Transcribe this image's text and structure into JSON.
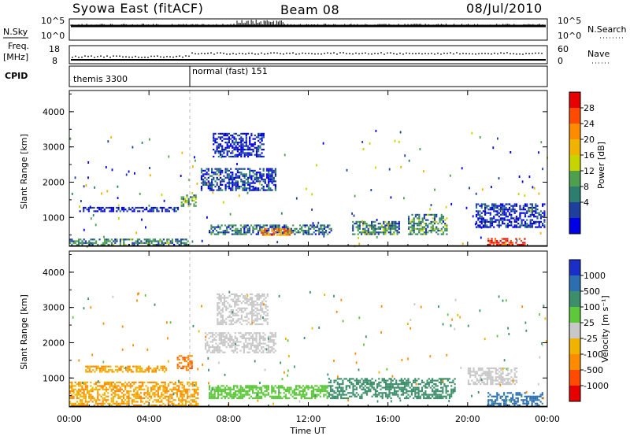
{
  "header": {
    "station": "Syowa East (fitACF)",
    "beam": "Beam 08",
    "date": "08/Jul/2010"
  },
  "noise_panel": {
    "left_label": "N.Sky",
    "right_label": "N.Search",
    "left_top": "10^5",
    "left_bottom": "10^0",
    "right_top": "10^5",
    "right_bottom": "10^0"
  },
  "freq_panel": {
    "left_label_1": "Freq.",
    "left_label_2": "[MHz]",
    "right_label": "Nave",
    "left_top": "18",
    "left_bottom": "8",
    "right_top": "60",
    "right_bottom": "0"
  },
  "cpid_panel": {
    "label": "CPID",
    "mode_1": "themis 3300",
    "mode_2": "normal (fast) 151"
  },
  "power_colorbar": {
    "label": "Power [dB]",
    "ticks": [
      "28",
      "24",
      "20",
      "16",
      "12",
      "8",
      "4"
    ],
    "colors": [
      "#e60000",
      "#ff4a00",
      "#ff8c00",
      "#f0b400",
      "#c8d400",
      "#4ea04e",
      "#2c7f6e",
      "#1e3f9e",
      "#0000e6"
    ]
  },
  "velocity_colorbar": {
    "label": "Velocity [m s⁻¹]",
    "ticks": [
      "1000",
      "500",
      "100",
      "25",
      "-25",
      "-100",
      "-500",
      "-1000"
    ],
    "colors": [
      "#1a2fc8",
      "#2c6fb0",
      "#3c8f6a",
      "#5cc83a",
      "#c8c8c8",
      "#f0b400",
      "#ff8c00",
      "#ff4a00",
      "#e60000"
    ]
  },
  "axes": {
    "ylabel": "Slant Range [km]",
    "xlabel": "Time UT",
    "yticks": [
      "4000",
      "3000",
      "2000",
      "1000"
    ],
    "xticks": [
      "00:00",
      "04:00",
      "08:00",
      "12:00",
      "16:00",
      "20:00",
      "00:00"
    ]
  },
  "chart_data": [
    {
      "type": "heatmap",
      "title": "Power [dB]",
      "x_unit": "hours UT",
      "y_unit": "km",
      "xlim": [
        0,
        24
      ],
      "ylim": [
        180,
        4600
      ],
      "blobs": [
        {
          "t0": 5.6,
          "t1": 6.4,
          "r0": 1300,
          "r1": 1650,
          "val": 12
        },
        {
          "t0": 6.6,
          "t1": 10.4,
          "r0": 1750,
          "r1": 2400,
          "val": 6
        },
        {
          "t0": 7.2,
          "t1": 9.8,
          "r0": 2700,
          "r1": 3400,
          "val": 4
        },
        {
          "t0": 7.0,
          "t1": 13.2,
          "r0": 500,
          "r1": 800,
          "val": 9
        },
        {
          "t0": 9.6,
          "t1": 11.2,
          "r0": 480,
          "r1": 700,
          "val": 22
        },
        {
          "t0": 14.2,
          "t1": 16.6,
          "r0": 500,
          "r1": 900,
          "val": 10
        },
        {
          "t0": 17.0,
          "t1": 19.0,
          "r0": 500,
          "r1": 1100,
          "val": 11
        },
        {
          "t0": 20.4,
          "t1": 23.9,
          "r0": 700,
          "r1": 1400,
          "val": 5
        },
        {
          "t0": 21.0,
          "t1": 23.0,
          "r0": 200,
          "r1": 420,
          "val": 28
        },
        {
          "t0": 0.5,
          "t1": 5.5,
          "r0": 1150,
          "r1": 1300,
          "val": 4
        },
        {
          "t0": 0.0,
          "t1": 6.0,
          "r0": 200,
          "r1": 400,
          "val": 10
        }
      ]
    },
    {
      "type": "heatmap",
      "title": "Velocity [m s⁻¹]",
      "x_unit": "hours UT",
      "y_unit": "km",
      "xlim": [
        0,
        24
      ],
      "ylim": [
        180,
        4600
      ],
      "blobs": [
        {
          "t0": 5.4,
          "t1": 6.2,
          "r0": 1200,
          "r1": 1650,
          "val": -500
        },
        {
          "t0": 6.8,
          "t1": 10.4,
          "r0": 1700,
          "r1": 2300,
          "val": 0
        },
        {
          "t0": 7.4,
          "t1": 10.0,
          "r0": 2500,
          "r1": 3400,
          "val": 0
        },
        {
          "t0": 7.0,
          "t1": 13.0,
          "r0": 400,
          "r1": 800,
          "val": 50
        },
        {
          "t0": 13.0,
          "t1": 19.4,
          "r0": 400,
          "r1": 1000,
          "val": 150
        },
        {
          "t0": 20.0,
          "t1": 22.5,
          "r0": 800,
          "r1": 1300,
          "val": 0
        },
        {
          "t0": 21.0,
          "t1": 23.8,
          "r0": 200,
          "r1": 600,
          "val": 700
        },
        {
          "t0": 0.0,
          "t1": 6.5,
          "r0": 200,
          "r1": 900,
          "val": -100
        },
        {
          "t0": 0.8,
          "t1": 5.0,
          "r0": 1150,
          "r1": 1350,
          "val": -100
        }
      ]
    }
  ]
}
